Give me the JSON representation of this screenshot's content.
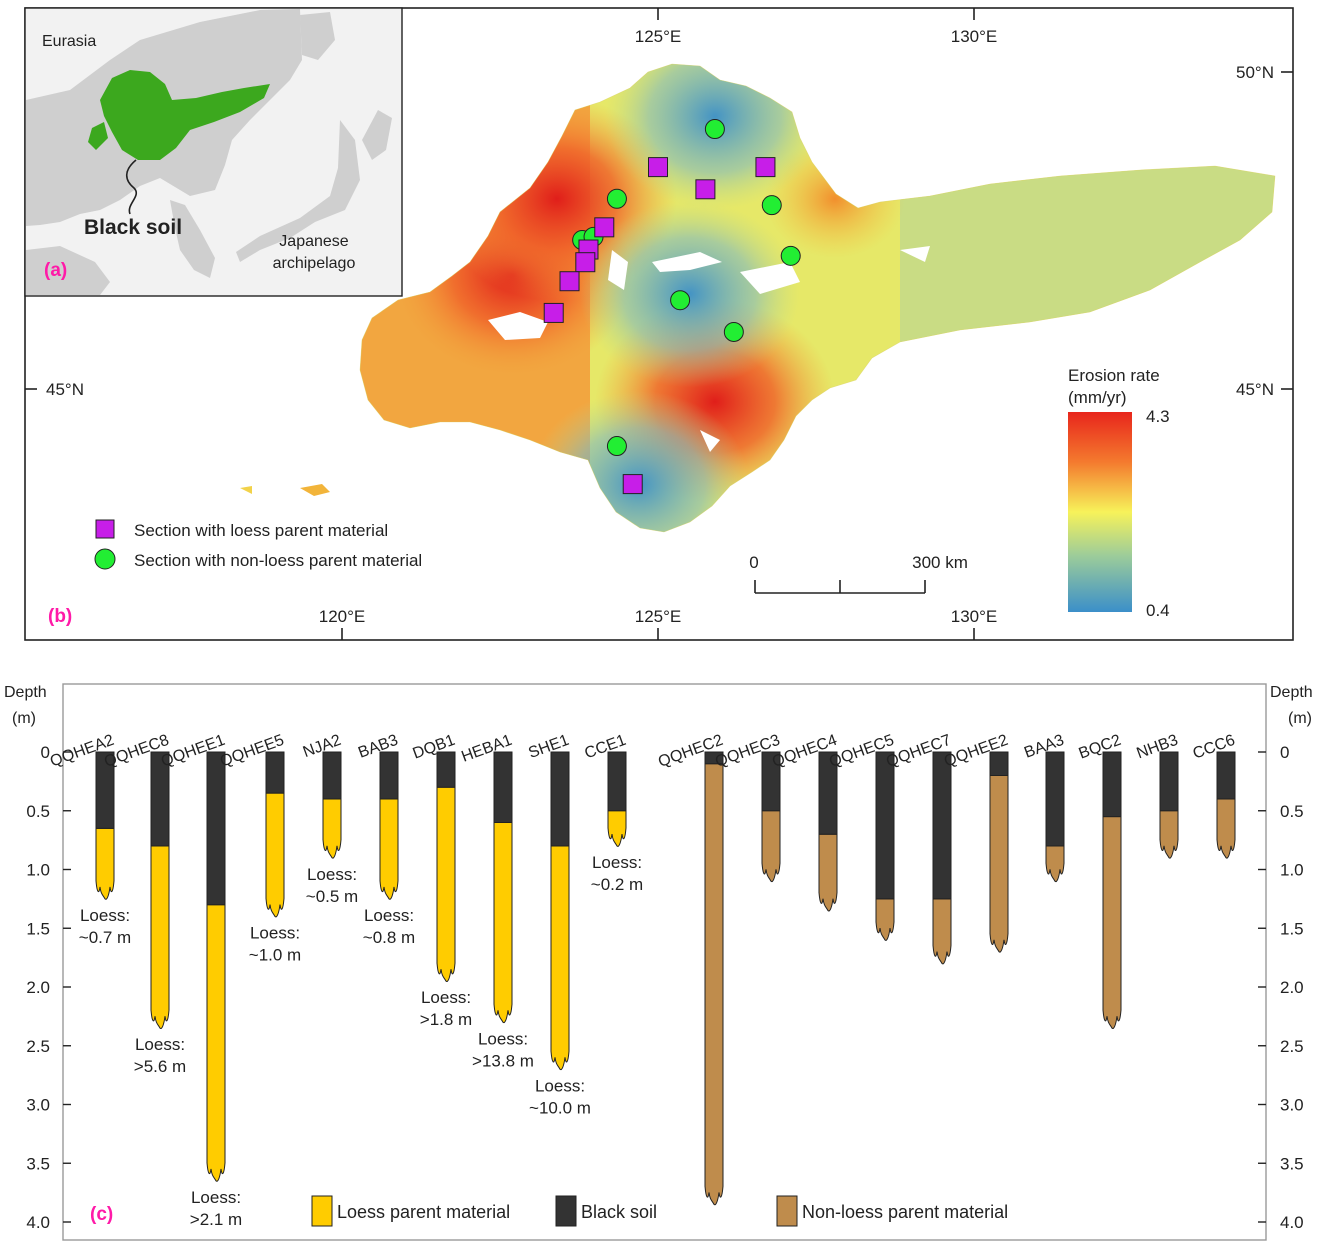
{
  "colors": {
    "loess": "#ffcc00",
    "black_soil": "#333333",
    "non_loess": "#bf8c4c",
    "panel_label": "#ff1aa8",
    "loess_marker": "#c71ee8",
    "non_loess_marker": "#22ee33",
    "ramp_high": "#e8261c",
    "ramp_mid": "#f7f25a",
    "ramp_low": "#3b8fc9",
    "inset_land": "#cfcfcf",
    "inset_black_soil": "#3ca81e"
  },
  "panel_a": {
    "label": "(a)",
    "eurasia_label": "Eurasia",
    "black_soil_label": "Black soil",
    "japan_label_line1": "Japanese",
    "japan_label_line2": "archipelago"
  },
  "panel_b": {
    "label": "(b)",
    "lon_ticks": [
      {
        "label": "120°E",
        "lon": 120
      },
      {
        "label": "125°E",
        "lon": 125
      },
      {
        "label": "130°E",
        "lon": 130
      }
    ],
    "lat_ticks": [
      {
        "label": "50°N",
        "lat": 50
      },
      {
        "label": "45°N",
        "lat": 45
      }
    ],
    "legend": {
      "loess_section": "Section with loess parent material",
      "non_loess_section": "Section with non-loess parent material"
    },
    "colorbar": {
      "title_line1": "Erosion rate",
      "title_line2": "(mm/yr)",
      "max_label": "4.3",
      "min_label": "0.4",
      "max": 4.3,
      "min": 0.4
    },
    "scale_bar": {
      "zero_label": "0",
      "end_label": "300 km",
      "length_km": 300
    },
    "erosion_hotspots": [
      {
        "lon": 122.7,
        "lat": 46.8,
        "level": "high"
      },
      {
        "lon": 123.4,
        "lat": 48.0,
        "level": "high"
      },
      {
        "lon": 125.9,
        "lat": 44.8,
        "level": "high"
      },
      {
        "lon": 127.8,
        "lat": 48.0,
        "level": "medium-high"
      },
      {
        "lon": 125.5,
        "lat": 46.5,
        "level": "low"
      },
      {
        "lon": 124.7,
        "lat": 43.5,
        "level": "low"
      },
      {
        "lon": 125.9,
        "lat": 49.3,
        "level": "low"
      }
    ],
    "loess_sections": [
      {
        "lon": 125.0,
        "lat": 48.5
      },
      {
        "lon": 125.75,
        "lat": 48.15
      },
      {
        "lon": 126.7,
        "lat": 48.5
      },
      {
        "lon": 124.15,
        "lat": 47.55
      },
      {
        "lon": 123.9,
        "lat": 47.2
      },
      {
        "lon": 123.85,
        "lat": 47.0
      },
      {
        "lon": 123.6,
        "lat": 46.7
      },
      {
        "lon": 123.35,
        "lat": 46.2
      },
      {
        "lon": 124.6,
        "lat": 43.5
      }
    ],
    "non_loess_sections": [
      {
        "lon": 125.9,
        "lat": 49.1
      },
      {
        "lon": 124.35,
        "lat": 48.0
      },
      {
        "lon": 126.8,
        "lat": 47.9
      },
      {
        "lon": 123.8,
        "lat": 47.35
      },
      {
        "lon": 123.98,
        "lat": 47.4
      },
      {
        "lon": 127.1,
        "lat": 47.1
      },
      {
        "lon": 125.35,
        "lat": 46.4
      },
      {
        "lon": 126.2,
        "lat": 45.9
      },
      {
        "lon": 124.35,
        "lat": 44.1
      }
    ]
  },
  "panel_c": {
    "label": "(c)",
    "depth_label": "Depth",
    "unit_label": "(m)",
    "depth_ticks": [
      "0",
      "0.5",
      "1.0",
      "1.5",
      "2.0",
      "2.5",
      "3.0",
      "3.5",
      "4.0"
    ],
    "legend": {
      "loess": "Loess parent material",
      "black_soil": "Black soil",
      "non_loess": "Non-loess parent material"
    }
  },
  "chart_data": {
    "type": "bar",
    "title": "",
    "ylabel": "Depth (m)",
    "ylim": [
      0,
      4.0
    ],
    "y_inverted": true,
    "categories": [
      "QQHEA2",
      "QQHEC8",
      "QQHEE1",
      "QQHEE5",
      "NJA2",
      "BAB3",
      "DQB1",
      "HEBA1",
      "SHE1",
      "CCE1",
      "QQHEC2",
      "QQHEC3",
      "QQHEC4",
      "QQHEC5",
      "QQHEC7",
      "QQHEE2",
      "BAA3",
      "BQC2",
      "NHB3",
      "CCC6"
    ],
    "series": [
      {
        "name": "Black soil",
        "values": [
          0.65,
          0.8,
          1.3,
          0.35,
          0.4,
          0.4,
          0.3,
          0.6,
          0.8,
          0.5,
          0.1,
          0.5,
          0.7,
          1.25,
          1.25,
          0.2,
          0.8,
          0.55,
          0.5,
          0.4
        ]
      },
      {
        "name": "Loess parent material",
        "values": [
          0.6,
          1.55,
          2.35,
          1.05,
          0.5,
          0.85,
          1.65,
          1.7,
          1.9,
          0.3,
          0,
          0,
          0,
          0,
          0,
          0,
          0,
          0,
          0,
          0
        ]
      },
      {
        "name": "Non-loess parent material",
        "values": [
          0,
          0,
          0,
          0,
          0,
          0,
          0,
          0,
          0,
          0,
          3.75,
          0.6,
          0.65,
          0.35,
          0.55,
          1.5,
          0.3,
          1.8,
          0.4,
          0.5
        ]
      }
    ],
    "loess_notes": [
      {
        "column": "QQHEA2",
        "line1": "Loess:",
        "line2": "~0.7 m"
      },
      {
        "column": "QQHEC8",
        "line1": "Loess:",
        "line2": ">5.6 m"
      },
      {
        "column": "QQHEE1",
        "line1": "Loess:",
        "line2": ">2.1 m"
      },
      {
        "column": "QQHEE5",
        "line1": "Loess:",
        "line2": "~1.0 m"
      },
      {
        "column": "NJA2",
        "line1": "Loess:",
        "line2": "~0.5 m"
      },
      {
        "column": "BAB3",
        "line1": "Loess:",
        "line2": "~0.8 m"
      },
      {
        "column": "DQB1",
        "line1": "Loess:",
        "line2": ">1.8 m"
      },
      {
        "column": "HEBA1",
        "line1": "Loess:",
        "line2": ">13.8 m"
      },
      {
        "column": "SHE1",
        "line1": "Loess:",
        "line2": "~10.0 m"
      },
      {
        "column": "CCE1",
        "line1": "Loess:",
        "line2": "~0.2 m"
      }
    ]
  }
}
